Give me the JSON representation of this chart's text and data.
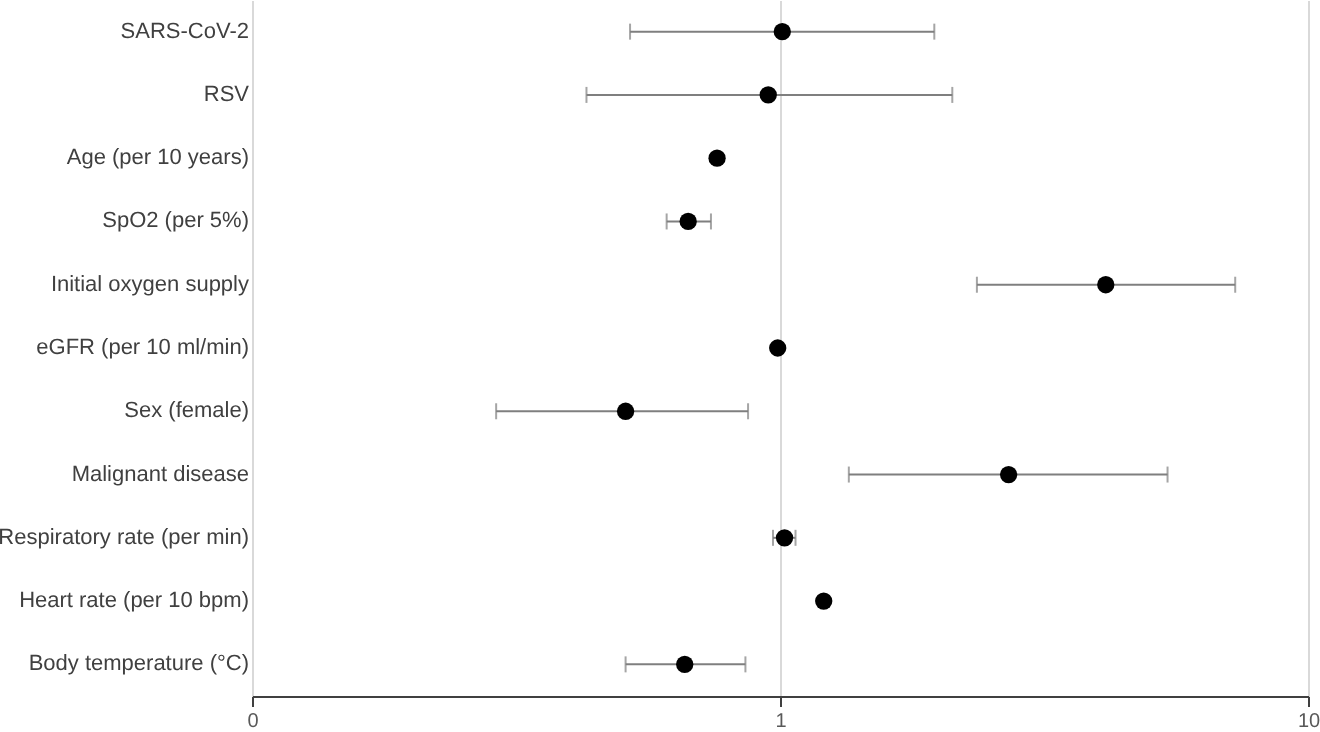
{
  "chart_data": {
    "type": "scatter",
    "orientation": "horizontal",
    "log": "x",
    "grid": "x",
    "marker": "circle",
    "categories": [
      "SARS-CoV-2",
      "RSV",
      "Age (per 10 years)",
      "SpO2 (per 5%)",
      "Initial oxygen supply",
      "eGFR (per 10 ml/min)",
      "Sex (female)",
      "Malignant disease",
      "Respiratory rate (per min)",
      "Heart rate (per 10 bpm)",
      "Body temperature (°C)"
    ],
    "xlim": [
      0.1,
      10
    ],
    "xticks": [
      {
        "value": 0.1,
        "label": "0"
      },
      1,
      10
    ],
    "series": [
      {
        "color": "#000000",
        "values": [
          1.01,
          0.95,
          0.76,
          0.67,
          4.14,
          0.99,
          0.51,
          2.71,
          1.02,
          1.21,
          0.66
        ],
        "errors": [
          [
            0.52,
            1.96
          ],
          [
            0.43,
            2.12
          ],
          null,
          [
            0.61,
            0.74
          ],
          [
            2.36,
            7.28
          ],
          null,
          [
            0.29,
            0.87
          ],
          [
            1.35,
            5.42
          ],
          [
            0.97,
            1.07
          ],
          null,
          [
            0.51,
            0.86
          ]
        ]
      }
    ]
  }
}
